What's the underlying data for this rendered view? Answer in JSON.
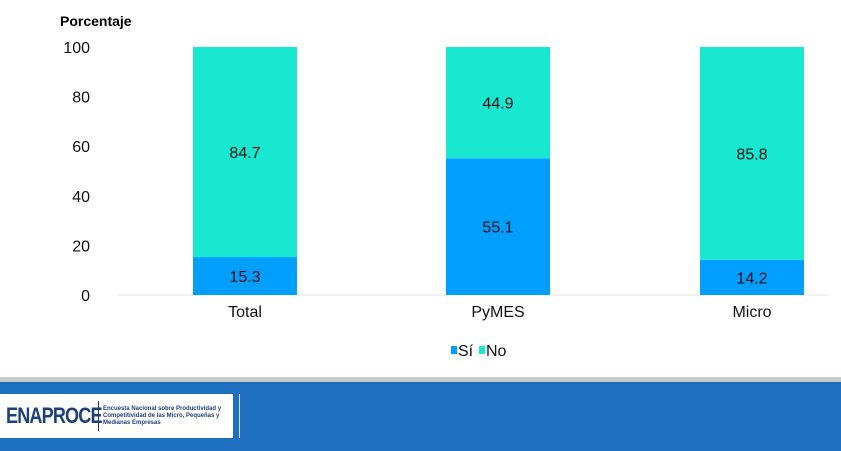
{
  "chart_data": {
    "type": "bar",
    "stacked": true,
    "ylabel": "Porcentaje",
    "ylim": [
      0,
      100
    ],
    "yticks": [
      "0",
      "20",
      "40",
      "60",
      "80",
      "100"
    ],
    "categories": [
      "Total",
      "PyMES",
      "Micro"
    ],
    "series": [
      {
        "name": "Sí",
        "color": "#009eff",
        "values": [
          15.3,
          55.1,
          14.2
        ]
      },
      {
        "name": "No",
        "color": "#17e8cf",
        "values": [
          84.7,
          44.9,
          85.8
        ]
      }
    ],
    "legend_position": "bottom-center",
    "grid": false
  },
  "footer": {
    "logo_text": "ENAPROCE",
    "logo_description": "Encuesta Nacional sobre Productividad y Competitividad de las Micro, Pequeñas y Medianas Empresas"
  }
}
